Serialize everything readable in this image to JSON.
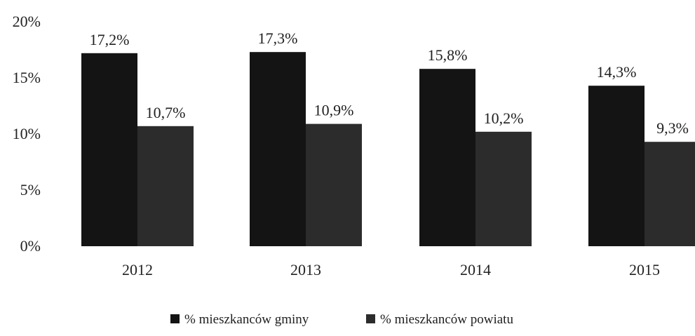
{
  "chart_data": {
    "type": "bar",
    "categories": [
      "2012",
      "2013",
      "2014",
      "2015"
    ],
    "series": [
      {
        "name": "% mieszkanców gminy",
        "values": [
          17.2,
          17.3,
          15.8,
          14.3
        ],
        "labels": [
          "17,2%",
          "17,3%",
          "15,8%",
          "14,3%"
        ],
        "color": "#141414"
      },
      {
        "name": "% mieszkanców powiatu",
        "values": [
          10.7,
          10.9,
          10.2,
          9.3
        ],
        "labels": [
          "10,7%",
          "10,9%",
          "10,2%",
          "9,3%"
        ],
        "color": "#2c2c2c"
      }
    ],
    "ylim": [
      0,
      20
    ],
    "yticks": [
      0,
      5,
      10,
      15,
      20
    ],
    "ytick_labels": [
      "0%",
      "5%",
      "10%",
      "15%",
      "20%"
    ],
    "grid": false,
    "legend_position": "bottom"
  }
}
